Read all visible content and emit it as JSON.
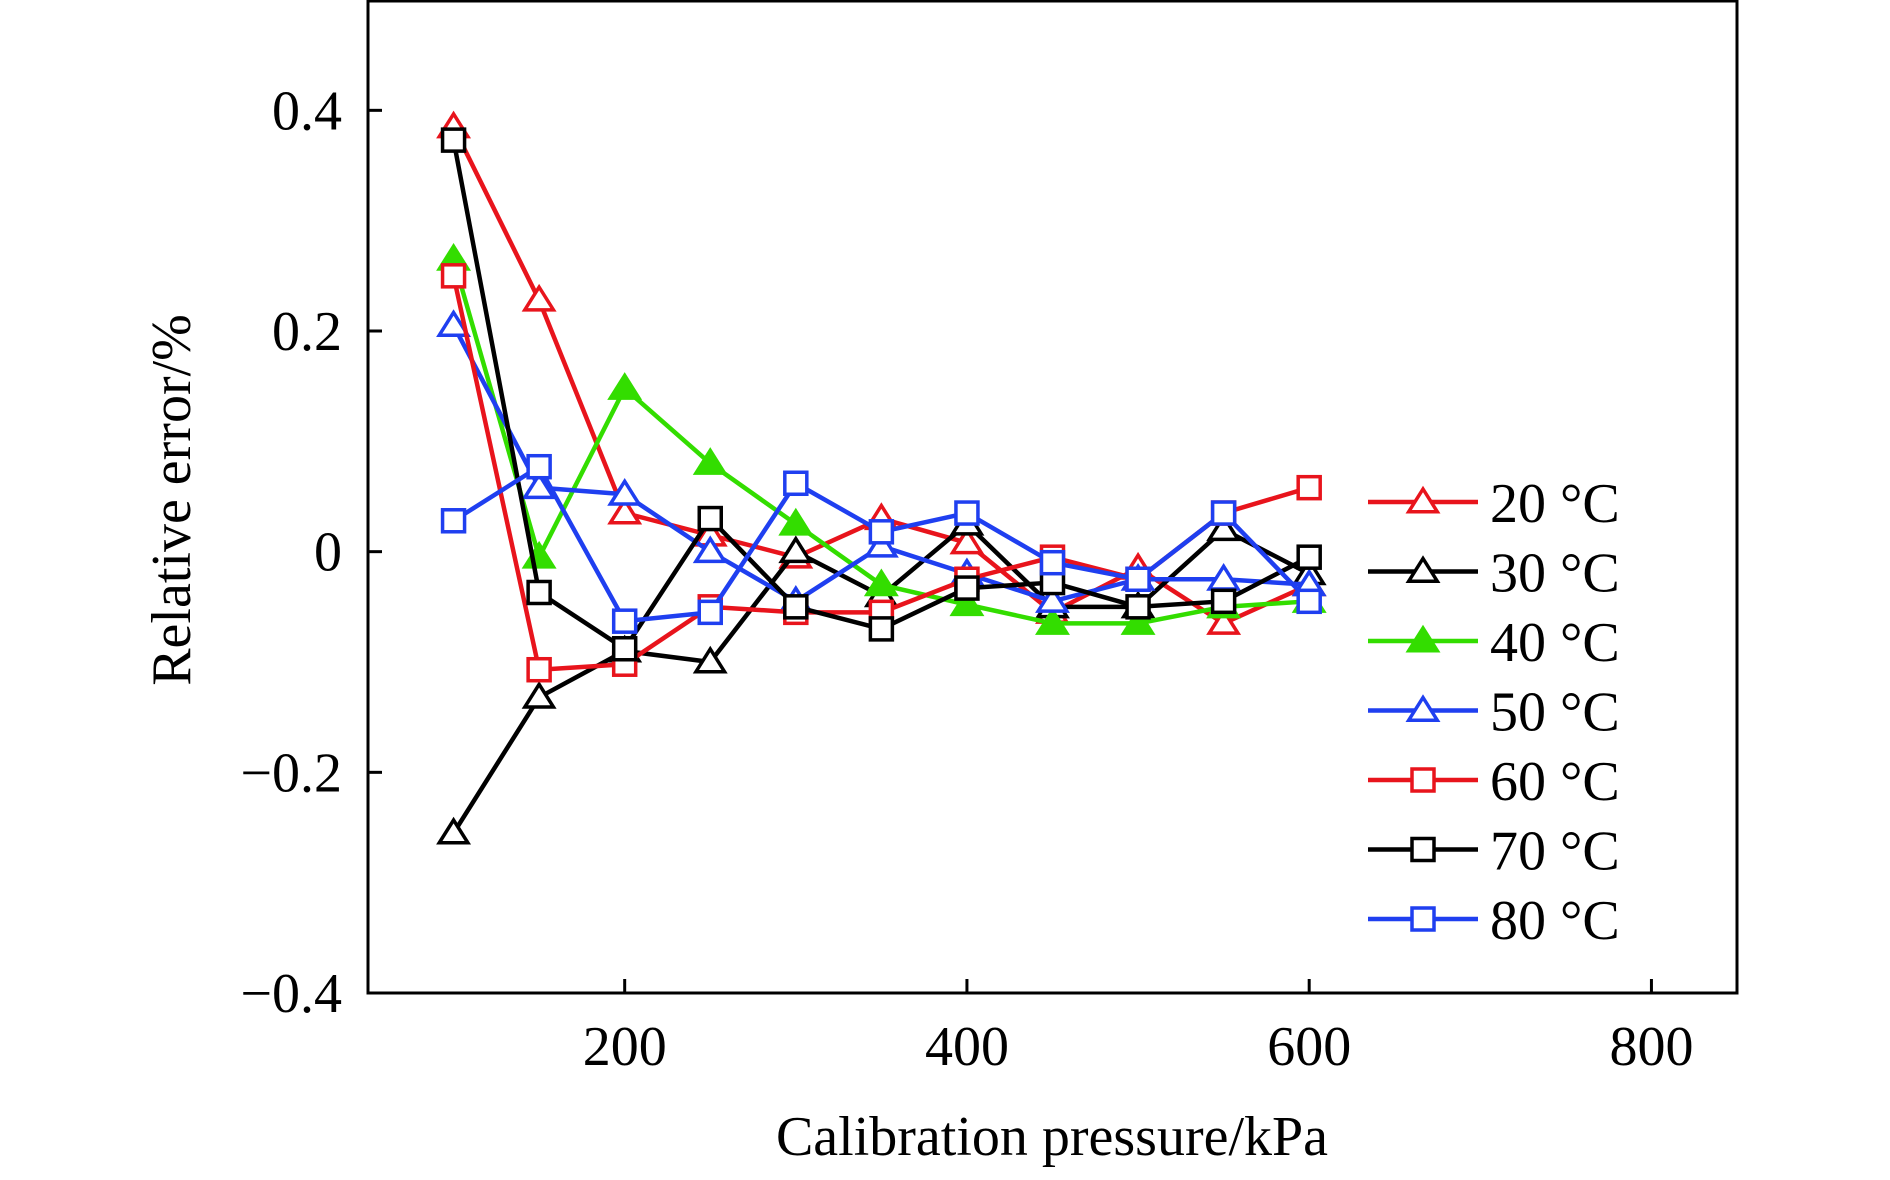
{
  "chart_data": {
    "type": "line",
    "title": "",
    "xlabel": "Calibration pressure/kPa",
    "ylabel": "Relative error/%",
    "xlim": [
      50,
      850
    ],
    "ylim": [
      -0.4,
      0.5
    ],
    "xticks": [
      200,
      400,
      600,
      800
    ],
    "yticks": [
      -0.4,
      -0.2,
      0,
      0.2,
      0.4
    ],
    "xtick_labels": [
      "200",
      "400",
      "600",
      "800"
    ],
    "ytick_labels": [
      "−0.4",
      "−0.2",
      "0",
      "0.2",
      "0.4"
    ],
    "grid": false,
    "legend_position": "right",
    "x": [
      100,
      150,
      200,
      250,
      300,
      350,
      400,
      450,
      500,
      550,
      600
    ],
    "series": [
      {
        "name": "20 °C",
        "color": "#e8141c",
        "marker": "triangle-open",
        "values": [
          0.385,
          0.228,
          0.035,
          0.015,
          -0.005,
          0.03,
          0.008,
          -0.055,
          -0.015,
          -0.065,
          -0.03
        ]
      },
      {
        "name": "30 °C",
        "color": "#000000",
        "marker": "triangle-open",
        "values": [
          -0.255,
          -0.132,
          -0.09,
          -0.1,
          0.0,
          -0.04,
          0.025,
          -0.05,
          -0.05,
          0.02,
          -0.02
        ]
      },
      {
        "name": "40 °C",
        "color": "#33dd00",
        "marker": "triangle-filled",
        "values": [
          0.265,
          -0.005,
          0.148,
          0.08,
          0.025,
          -0.03,
          -0.048,
          -0.065,
          -0.065,
          -0.05,
          -0.045
        ]
      },
      {
        "name": "50 °C",
        "color": "#1f3ff0",
        "marker": "triangle-open",
        "values": [
          0.205,
          0.058,
          0.052,
          0.0,
          -0.045,
          0.005,
          -0.02,
          -0.045,
          -0.025,
          -0.025,
          -0.03
        ]
      },
      {
        "name": "60 °C",
        "color": "#e8141c",
        "marker": "square-open",
        "values": [
          0.25,
          -0.107,
          -0.102,
          -0.05,
          -0.055,
          -0.055,
          -0.025,
          -0.005,
          -0.025,
          0.035,
          0.058
        ]
      },
      {
        "name": "70 °C",
        "color": "#000000",
        "marker": "square-open",
        "values": [
          0.373,
          -0.037,
          -0.088,
          0.03,
          -0.05,
          -0.07,
          -0.033,
          -0.028,
          -0.05,
          -0.045,
          -0.005
        ]
      },
      {
        "name": "80 °C",
        "color": "#1f3ff0",
        "marker": "square-open",
        "values": [
          0.028,
          0.077,
          -0.063,
          -0.055,
          0.062,
          0.018,
          0.035,
          -0.01,
          -0.025,
          0.035,
          -0.045
        ]
      }
    ]
  }
}
